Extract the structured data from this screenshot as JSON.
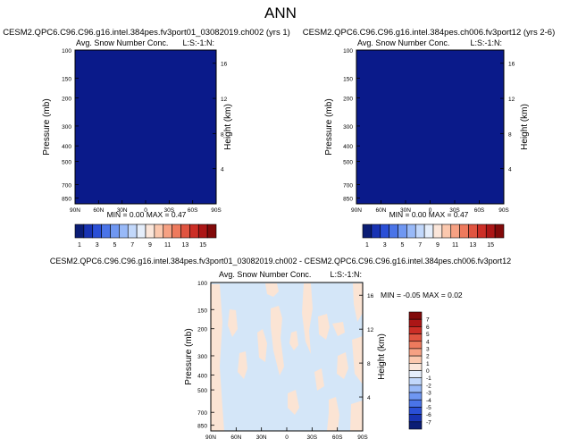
{
  "figure": {
    "title": "ANN"
  },
  "chart_data": [
    {
      "type": "heatmap",
      "panel": "top-left",
      "title": "CESM2.QPC6.C96.C96.g16.intel.384pes.fv3port01_03082019.ch002 (yrs 1)",
      "subtitle": "Avg. Snow Number Conc.",
      "corner_label": "L:S:-1:N:",
      "ylabel": "Pressure (mb)",
      "ylabel_right": "Height (km)",
      "x_ticks": [
        "90N",
        "60N",
        "30N",
        "0",
        "30S",
        "60S",
        "90S"
      ],
      "y_ticks": [
        "100",
        "150",
        "200",
        "300",
        "400",
        "500",
        "700",
        "850"
      ],
      "y_right_ticks": [
        "16",
        "12",
        "8",
        "4"
      ],
      "stats": "MIN =  0.00  MAX =  0.47",
      "min": 0.0,
      "max": 0.47,
      "field": "uniform",
      "fill_color": "#0a1a8a"
    },
    {
      "type": "heatmap",
      "panel": "top-right",
      "title": "CESM2.QPC6.C96.C96.g16.intel.384pes.ch006.fv3port12 (yrs 2-6)",
      "subtitle": "Avg. Snow Number Conc.",
      "corner_label": "L:S:-1:N:",
      "ylabel": "Pressure (mb)",
      "ylabel_right": "Height (km)",
      "x_ticks": [
        "90N",
        "60N",
        "30N",
        "0",
        "30S",
        "60S",
        "90S"
      ],
      "y_ticks": [
        "100",
        "150",
        "200",
        "300",
        "400",
        "500",
        "700",
        "850"
      ],
      "y_right_ticks": [
        "16",
        "12",
        "8",
        "4"
      ],
      "stats": "MIN =  0.00  MAX =  0.47",
      "min": 0.0,
      "max": 0.47,
      "field": "uniform",
      "fill_color": "#0a1a8a"
    },
    {
      "type": "heatmap",
      "panel": "bottom-difference",
      "title": "CESM2.QPC6.C96.C96.g16.intel.384pes.fv3port01_03082019.ch002 - CESM2.QPC6.C96.C96.g16.intel.384pes.ch006.fv3port12",
      "subtitle": "Avg. Snow Number Conc.",
      "corner_label": "L:S:-1:N:",
      "ylabel": "Pressure (mb)",
      "ylabel_right": "Height (km)",
      "x_ticks": [
        "90N",
        "60N",
        "30N",
        "0",
        "30S",
        "60S",
        "90S"
      ],
      "y_ticks": [
        "100",
        "150",
        "200",
        "300",
        "400",
        "500",
        "700",
        "850"
      ],
      "y_right_ticks": [
        "16",
        "12",
        "8",
        "4"
      ],
      "stats": "MIN = -0.05  MAX =  0.02",
      "min": -0.05,
      "max": 0.02,
      "field": "mostly 0 to -1 (light blue) with scattered 0 to 1 (peach) patches",
      "background_color": "#d4e6f8",
      "patch_color": "#fbe4d4"
    }
  ],
  "colorbars": {
    "horizontal": {
      "labels": [
        "1",
        "3",
        "5",
        "7",
        "9",
        "11",
        "13",
        "15"
      ],
      "colors": [
        "#0b1d75",
        "#1833b3",
        "#2a4fd6",
        "#4a74e8",
        "#6f97f2",
        "#98b9f8",
        "#c2d8fb",
        "#e5eefb",
        "#fbe6da",
        "#fbc8ae",
        "#f6a183",
        "#ee7a5d",
        "#e05440",
        "#cc2e26",
        "#ac1616",
        "#820a0a"
      ]
    },
    "vertical": {
      "labels": [
        "7",
        "6",
        "5",
        "4",
        "3",
        "2",
        "1",
        "0",
        "-1",
        "-2",
        "-3",
        "-4",
        "-5",
        "-6",
        "-7"
      ],
      "colors": [
        "#820a0a",
        "#ac1616",
        "#cc2e26",
        "#e05440",
        "#ee7a5d",
        "#f6a183",
        "#fbc8ae",
        "#fbe6da",
        "#e5eefb",
        "#c2d8fb",
        "#98b9f8",
        "#6f97f2",
        "#4a74e8",
        "#2a4fd6",
        "#1833b3",
        "#0b1d75"
      ]
    }
  }
}
